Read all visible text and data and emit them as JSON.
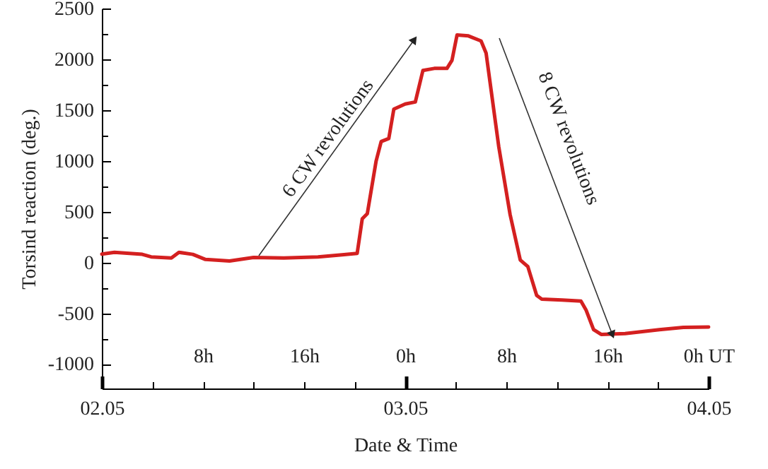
{
  "chart_data": {
    "type": "line",
    "xlabel": "Date & Time",
    "ylabel": "Torsind reaction (deg.)",
    "x": [
      "--05-02T00:00",
      "--05-02T01:00",
      "--05-02T03:12",
      "--05-02T03:54",
      "--05-02T05:30",
      "--05-02T06:06",
      "--05-02T07:12",
      "--05-02T08:12",
      "--05-02T10:06",
      "--05-02T12:00",
      "--05-02T14:24",
      "--05-02T17:06",
      "--05-02T19:00",
      "--05-02T20:12",
      "--05-02T20:36",
      "--05-02T21:00",
      "--05-02T21:42",
      "--05-02T22:06",
      "--05-02T22:42",
      "--05-02T23:06",
      "--05-03T00:00",
      "--05-03T00:48",
      "--05-03T01:24",
      "--05-03T02:18",
      "--05-03T03:18",
      "--05-03T03:42",
      "--05-03T04:06",
      "--05-03T05:00",
      "--05-03T06:00",
      "--05-03T06:24",
      "--05-03T07:24",
      "--05-03T08:18",
      "--05-03T09:06",
      "--05-03T09:42",
      "--05-03T10:24",
      "--05-03T10:48",
      "--05-03T12:24",
      "--05-03T13:54",
      "--05-03T14:18",
      "--05-03T14:54",
      "--05-03T15:30",
      "--05-03T17:24",
      "--05-03T20:06",
      "--05-03T22:00",
      "--05-04T00:00"
    ],
    "series": [
      {
        "color": "#d42020",
        "values": [
          83,
          100,
          80,
          55,
          45,
          100,
          80,
          30,
          15,
          50,
          45,
          55,
          75,
          90,
          430,
          480,
          1000,
          1190,
          1220,
          1510,
          1560,
          1580,
          1890,
          1910,
          1910,
          1990,
          2240,
          2230,
          2180,
          2060,
          1140,
          470,
          25,
          -40,
          -324,
          -360,
          -370,
          -380,
          -466,
          -660,
          -708,
          -700,
          -662,
          -638,
          -635
        ]
      }
    ],
    "xlim": [
      "--05-02T00:00",
      "--05-04T00:00"
    ],
    "xticks": [
      {
        "value": "--05-02",
        "label": "02.05"
      },
      {
        "value": "--05-02T04:00",
        "label": null
      },
      {
        "value": "--05-02T08:00",
        "label": null
      },
      {
        "value": "--05-02T12:00",
        "label": null
      },
      {
        "value": "--05-02T16:00",
        "label": null
      },
      {
        "value": "--05-02T20:00",
        "label": null
      },
      {
        "value": "--05-03",
        "label": "03.05"
      },
      {
        "value": "--05-03T04:00",
        "label": null
      },
      {
        "value": "--05-03T08:00",
        "label": null
      },
      {
        "value": "--05-03T12:00",
        "label": null
      },
      {
        "value": "--05-03T16:00",
        "label": null
      },
      {
        "value": "--05-03T20:00",
        "label": null
      },
      {
        "value": "--05-04",
        "label": "04.05"
      }
    ],
    "x2lim": [
      "--05-02T00:00",
      "--05-04T00:00"
    ],
    "x2ticks": [
      {
        "value": "--05-02T08:00",
        "label": "8h"
      },
      {
        "value": "--05-02T16:00",
        "label": "16h"
      },
      {
        "value": "--05-03T00:00",
        "label": "0h"
      },
      {
        "value": "--05-03T08:00",
        "label": "8h"
      },
      {
        "value": "--05-03T16:00",
        "label": "16h"
      },
      {
        "value": "--05-04T00:00",
        "label": "0h UT"
      }
    ],
    "ylim": [
      -1240,
      2500
    ],
    "yticks": [
      -1000,
      {
        "value": -750,
        "label": null
      },
      -500,
      {
        "value": -250,
        "label": null
      },
      0,
      {
        "value": 250,
        "label": null
      },
      500,
      {
        "value": 750,
        "label": null
      },
      1000,
      {
        "value": 1250,
        "label": null
      },
      1500,
      {
        "value": 1750,
        "label": null
      },
      2000,
      {
        "value": 2250,
        "label": null
      },
      2500
    ],
    "annotations": [
      "6 CW revolutions",
      "8 CW revolutions"
    ],
    "line_style": "solid"
  }
}
